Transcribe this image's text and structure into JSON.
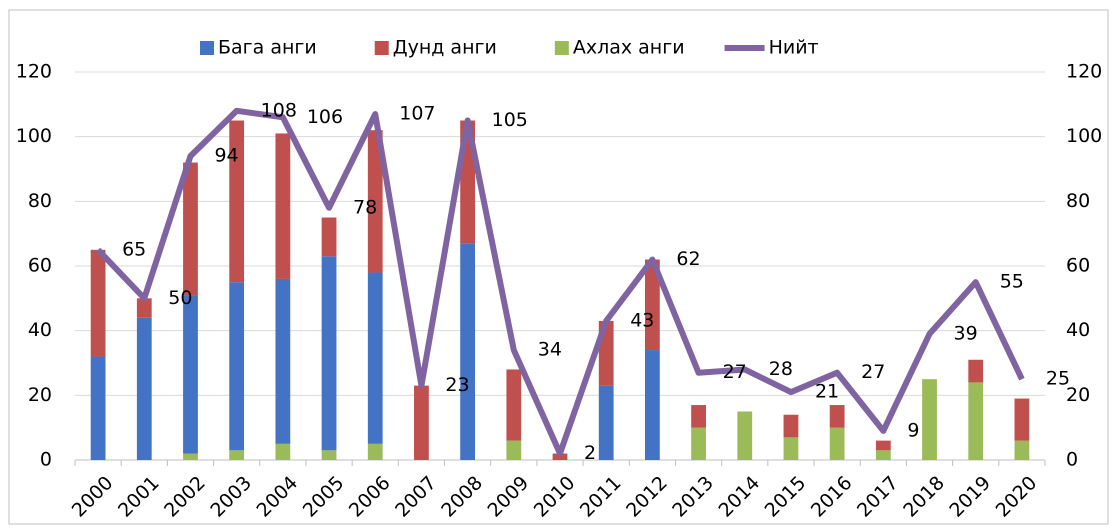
{
  "chart_data": {
    "type": "bar",
    "categories": [
      "2000",
      "2001",
      "2002",
      "2003",
      "2004",
      "2005",
      "2006",
      "2007",
      "2008",
      "2009",
      "2010",
      "2011",
      "2012",
      "2013",
      "2014",
      "2015",
      "2016",
      "2017",
      "2018",
      "2019",
      "2020"
    ],
    "stacked": true,
    "series": [
      {
        "name": "Бага анги",
        "color": "#4472c4",
        "values": [
          32,
          44,
          49,
          52,
          51,
          60,
          53,
          0,
          67,
          0,
          0,
          23,
          34,
          0,
          0,
          0,
          0,
          0,
          0,
          0,
          0
        ]
      },
      {
        "name": "Дунд анги",
        "color": "#c0504d",
        "values": [
          33,
          6,
          41,
          50,
          45,
          12,
          44,
          23,
          38,
          22,
          2,
          20,
          28,
          7,
          0,
          7,
          7,
          3,
          0,
          7,
          13
        ]
      },
      {
        "name": "Ахлах анги",
        "color": "#9bbb59",
        "values": [
          0,
          0,
          2,
          3,
          5,
          3,
          5,
          0,
          0,
          6,
          0,
          0,
          0,
          10,
          15,
          7,
          10,
          3,
          25,
          24,
          6
        ]
      },
      {
        "name": "Нийт",
        "type": "line",
        "axis": "y2",
        "color": "#8064a2",
        "values": [
          65,
          50,
          94,
          108,
          106,
          78,
          107,
          23,
          105,
          34,
          2,
          43,
          62,
          27,
          28,
          21,
          27,
          9,
          39,
          55,
          25
        ]
      }
    ],
    "ylim": [
      0,
      120
    ],
    "yticks": [
      0,
      20,
      40,
      60,
      80,
      100,
      120
    ],
    "y2lim": [
      0,
      120
    ],
    "y2ticks": [
      0,
      20,
      40,
      60,
      80,
      100,
      120
    ],
    "grid": true,
    "legend": "top"
  }
}
